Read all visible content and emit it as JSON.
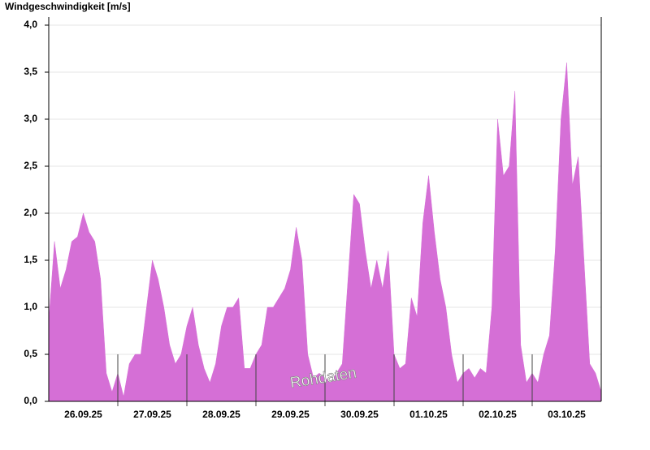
{
  "chart_data": {
    "type": "area",
    "ylabel": "Windgeschwindigkeit [m/s]",
    "annotation": "Rohdaten",
    "color": "#d56fd6",
    "grid": true,
    "xlim": [
      0,
      192
    ],
    "ylim": [
      0,
      4.0
    ],
    "yticks": [
      {
        "value": 0,
        "label": "0,0"
      },
      {
        "value": 0.5,
        "label": "0,5"
      },
      {
        "value": 1,
        "label": "1,0"
      },
      {
        "value": 1.5,
        "label": "1,5"
      },
      {
        "value": 2,
        "label": "2,0"
      },
      {
        "value": 2.5,
        "label": "2,5"
      },
      {
        "value": 3,
        "label": "3,0"
      },
      {
        "value": 3.5,
        "label": "3,5"
      },
      {
        "value": 4,
        "label": "4,0"
      }
    ],
    "xticks": [
      {
        "value": 12,
        "label": "26.09.25"
      },
      {
        "value": 36,
        "label": "27.09.25"
      },
      {
        "value": 60,
        "label": "28.09.25"
      },
      {
        "value": 84,
        "label": "29.09.25"
      },
      {
        "value": 108,
        "label": "30.09.25"
      },
      {
        "value": 132,
        "label": "01.10.25"
      },
      {
        "value": 156,
        "label": "02.10.25"
      },
      {
        "value": 180,
        "label": "03.10.25"
      }
    ],
    "xminorticks": [
      24,
      48,
      72,
      96,
      120,
      144,
      168
    ],
    "x": [
      0,
      2,
      4,
      6,
      8,
      10,
      12,
      14,
      16,
      18,
      20,
      22,
      24,
      26,
      28,
      30,
      32,
      34,
      36,
      38,
      40,
      42,
      44,
      46,
      48,
      50,
      52,
      54,
      56,
      58,
      60,
      62,
      64,
      66,
      68,
      70,
      72,
      74,
      76,
      78,
      80,
      82,
      84,
      86,
      88,
      90,
      92,
      94,
      96,
      98,
      100,
      102,
      104,
      106,
      108,
      110,
      112,
      114,
      116,
      118,
      120,
      122,
      124,
      126,
      128,
      130,
      132,
      134,
      136,
      138,
      140,
      142,
      144,
      146,
      148,
      150,
      152,
      154,
      156,
      158,
      160,
      162,
      164,
      166,
      168,
      170,
      172,
      174,
      176,
      178,
      180,
      182,
      184,
      186,
      188,
      190,
      192
    ],
    "values": [
      0.85,
      1.7,
      1.2,
      1.4,
      1.7,
      1.75,
      2.0,
      1.8,
      1.7,
      1.3,
      0.3,
      0.1,
      0.3,
      0.05,
      0.4,
      0.5,
      0.5,
      1.0,
      1.5,
      1.3,
      1.0,
      0.6,
      0.4,
      0.5,
      0.8,
      1.0,
      0.6,
      0.35,
      0.2,
      0.4,
      0.8,
      1.0,
      1.0,
      1.1,
      0.35,
      0.35,
      0.5,
      0.6,
      1.0,
      1.0,
      1.1,
      1.2,
      1.4,
      1.85,
      1.5,
      0.5,
      0.25,
      0.3,
      0.25,
      0.2,
      0.3,
      0.4,
      1.3,
      2.2,
      2.1,
      1.6,
      1.2,
      1.5,
      1.2,
      1.6,
      0.5,
      0.35,
      0.4,
      1.1,
      0.9,
      1.9,
      2.4,
      1.8,
      1.3,
      1.0,
      0.5,
      0.2,
      0.3,
      0.35,
      0.25,
      0.35,
      0.3,
      1.0,
      3.0,
      2.4,
      2.5,
      3.3,
      0.6,
      0.2,
      0.3,
      0.2,
      0.5,
      0.7,
      1.6,
      3.0,
      3.6,
      2.3,
      2.6,
      1.5,
      0.4,
      0.3,
      0.1
    ]
  }
}
